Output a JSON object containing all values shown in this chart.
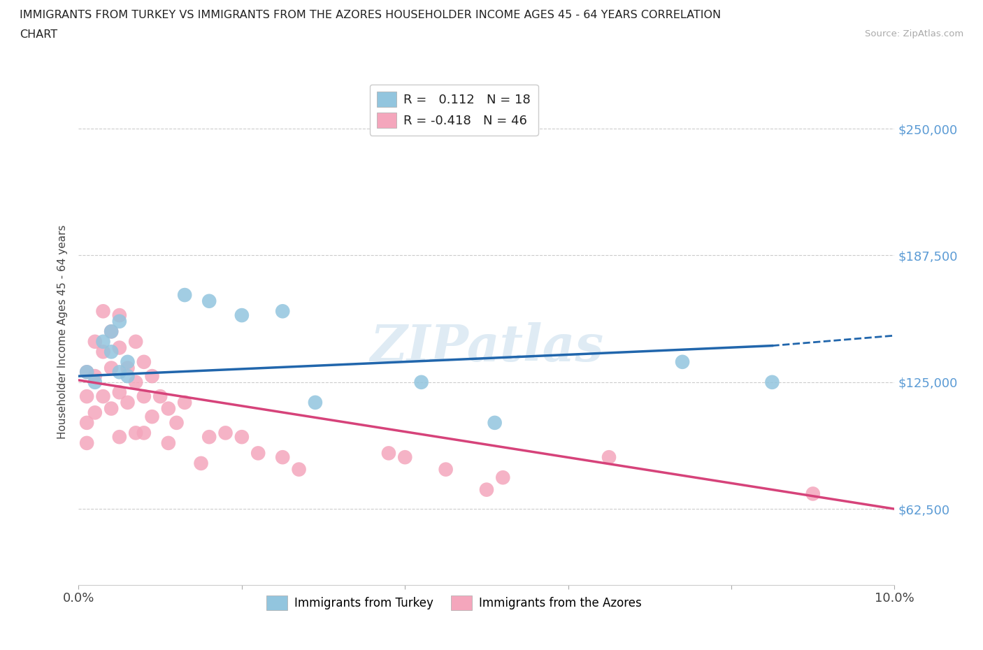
{
  "title_line1": "IMMIGRANTS FROM TURKEY VS IMMIGRANTS FROM THE AZORES HOUSEHOLDER INCOME AGES 45 - 64 YEARS CORRELATION",
  "title_line2": "CHART",
  "source": "Source: ZipAtlas.com",
  "ylabel": "Householder Income Ages 45 - 64 years",
  "x_min": 0.0,
  "x_max": 0.1,
  "y_min": 25000,
  "y_max": 275000,
  "y_ticks": [
    62500,
    125000,
    187500,
    250000
  ],
  "y_tick_labels": [
    "$62,500",
    "$125,000",
    "$187,500",
    "$250,000"
  ],
  "x_ticks": [
    0.0,
    0.02,
    0.04,
    0.06,
    0.08,
    0.1
  ],
  "turkey_R": 0.112,
  "turkey_N": 18,
  "azores_R": -0.418,
  "azores_N": 46,
  "turkey_color": "#92c5de",
  "azores_color": "#f4a6bc",
  "turkey_line_color": "#2166ac",
  "azores_line_color": "#d6437a",
  "watermark": "ZIPatlas",
  "turkey_x": [
    0.001,
    0.002,
    0.003,
    0.004,
    0.004,
    0.005,
    0.005,
    0.006,
    0.006,
    0.013,
    0.016,
    0.02,
    0.025,
    0.029,
    0.042,
    0.051,
    0.074,
    0.085
  ],
  "turkey_y": [
    130000,
    125000,
    145000,
    150000,
    140000,
    155000,
    130000,
    135000,
    128000,
    168000,
    165000,
    158000,
    160000,
    115000,
    125000,
    105000,
    135000,
    125000
  ],
  "azores_x": [
    0.001,
    0.001,
    0.001,
    0.001,
    0.002,
    0.002,
    0.002,
    0.003,
    0.003,
    0.003,
    0.004,
    0.004,
    0.004,
    0.005,
    0.005,
    0.005,
    0.005,
    0.006,
    0.006,
    0.007,
    0.007,
    0.007,
    0.008,
    0.008,
    0.008,
    0.009,
    0.009,
    0.01,
    0.011,
    0.011,
    0.012,
    0.013,
    0.015,
    0.016,
    0.018,
    0.02,
    0.022,
    0.025,
    0.027,
    0.038,
    0.04,
    0.045,
    0.05,
    0.052,
    0.065,
    0.09
  ],
  "azores_y": [
    130000,
    118000,
    105000,
    95000,
    145000,
    128000,
    110000,
    160000,
    140000,
    118000,
    150000,
    132000,
    112000,
    158000,
    142000,
    120000,
    98000,
    132000,
    115000,
    145000,
    125000,
    100000,
    135000,
    118000,
    100000,
    128000,
    108000,
    118000,
    112000,
    95000,
    105000,
    115000,
    85000,
    98000,
    100000,
    98000,
    90000,
    88000,
    82000,
    90000,
    88000,
    82000,
    72000,
    78000,
    88000,
    70000
  ],
  "turkey_line_y0": 128000,
  "turkey_line_y_at_085": 143000,
  "turkey_line_y_at_10": 148000,
  "azores_line_y0": 126000,
  "azores_line_y_at_10": 62500,
  "legend_R_color": "#2166ac",
  "legend_R2_color": "#d6437a",
  "legend_N_color": "#2166ac"
}
